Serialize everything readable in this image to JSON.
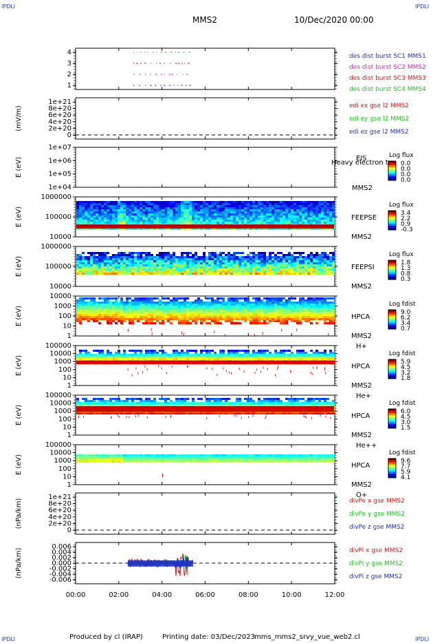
{
  "corner_label": "IPDLI",
  "header": {
    "title": "MMS2",
    "datetime": "10/Dec/2020 00:00"
  },
  "footer": {
    "produced": "Produced by cl (IRAP)",
    "printing": "Printing date: 03/Dec/2023",
    "file": "mms_mms2_srvy_vue_web2.cl"
  },
  "colors": {
    "red": "#e01010",
    "green": "#1fbf1f",
    "blue": "#1a2ec8",
    "magenta": "#d020d0",
    "black": "#000000"
  },
  "chart_data": {
    "type": "multi-panel time series / spectrogram",
    "x_range": [
      "00:00",
      "12:00"
    ],
    "x_ticks": [
      "00:00",
      "02:00",
      "04:00",
      "06:00",
      "08:00",
      "10:00",
      "12:00"
    ],
    "panels": [
      {
        "id": "dist",
        "type": "line",
        "y_ticks": [
          "1",
          "2",
          "3",
          "4"
        ],
        "legend": [
          {
            "label": "des dist burst SC1 MMS1",
            "color": "#1a2ec8"
          },
          {
            "label": "des dist burst SC2 MMS2",
            "color": "#d020d0"
          },
          {
            "label": "des dist burst SC3 MMS3",
            "color": "#e01010"
          },
          {
            "label": "des dist burst SC4 MMS4",
            "color": "#1fbf1f"
          }
        ]
      },
      {
        "id": "edi",
        "type": "line",
        "ylabel": "(mV/m)",
        "y_ticks": [
          "0",
          "2e+20",
          "4e+20",
          "6e+20",
          "8e+20",
          "1e+21"
        ],
        "legend": [
          {
            "label": "edi ex gse l2 MMS2",
            "color": "#e01010"
          },
          {
            "label": "edi ey gse l2 MMS2",
            "color": "#1fbf1f"
          },
          {
            "label": "edi ez gse l2 MMS2",
            "color": "#1a2ec8"
          }
        ]
      },
      {
        "id": "eis",
        "type": "heatmap",
        "ylabel": "E (eV)",
        "y_ticks": [
          "1e+04",
          "1e+05",
          "1e+06",
          "1e+07"
        ],
        "labels": [
          "EIS",
          "Heavy electron to",
          "MMS2"
        ],
        "cbar_title": "Log flux",
        "cbar_ticks": [
          "0.0",
          "0.0",
          "0.0",
          "0.0"
        ]
      },
      {
        "id": "feepse",
        "type": "heatmap",
        "ylabel": "E (eV)",
        "y_ticks": [
          "10000",
          "100000",
          "1000000"
        ],
        "labels": [
          "FEEPSE",
          "MMS2"
        ],
        "cbar_title": "Log flux",
        "cbar_ticks": [
          "3.4",
          "2.2",
          "0.9",
          "-0.3"
        ]
      },
      {
        "id": "feepsi",
        "type": "heatmap",
        "ylabel": "E (eV)",
        "y_ticks": [
          "10000",
          "100000",
          "1000000"
        ],
        "labels": [
          "FEEPSI",
          "MMS2"
        ],
        "cbar_title": "Log flux",
        "cbar_ticks": [
          "1.8",
          "1.3",
          "0.8",
          "0.3"
        ]
      },
      {
        "id": "hpca_h",
        "type": "heatmap",
        "ylabel": "E (eV)",
        "y_ticks": [
          "1",
          "10",
          "100",
          "1000",
          "10000"
        ],
        "labels": [
          "HPCA",
          "MMS2",
          "H+"
        ],
        "cbar_title": "Log fdist",
        "cbar_ticks": [
          "9.0",
          "6.2",
          "3.4",
          "0.7"
        ]
      },
      {
        "id": "hpca_he",
        "type": "heatmap",
        "ylabel": "E (eV)",
        "y_ticks": [
          "1",
          "10",
          "100",
          "1000",
          "10000",
          "100000"
        ],
        "labels": [
          "HPCA",
          "MMS2",
          "He+"
        ],
        "cbar_title": "Log fdist",
        "cbar_ticks": [
          "5.9",
          "4.5",
          "3.2",
          "1.8"
        ]
      },
      {
        "id": "hpca_hepp",
        "type": "heatmap",
        "ylabel": "E (eV)",
        "y_ticks": [
          "1",
          "10",
          "100",
          "1000",
          "10000",
          "100000"
        ],
        "labels": [
          "HPCA",
          "MMS2",
          "He++"
        ],
        "cbar_title": "Log fdist",
        "cbar_ticks": [
          "6.0",
          "4.5",
          "3.0",
          "1.5"
        ]
      },
      {
        "id": "hpca_o",
        "type": "heatmap",
        "ylabel": "E (eV)",
        "y_ticks": [
          "1",
          "10",
          "100",
          "1000",
          "10000",
          "100000"
        ],
        "labels": [
          "HPCA",
          "MMS2",
          "O+"
        ],
        "cbar_title": "Log fdist",
        "cbar_ticks": [
          "9.6",
          "7.7",
          "5.9",
          "4.1"
        ]
      },
      {
        "id": "divpe",
        "type": "line",
        "ylabel": "(nPa/km)",
        "y_ticks": [
          "0",
          "2e+20",
          "4e+20",
          "6e+20",
          "8e+20",
          "1e+21"
        ],
        "legend": [
          {
            "label": "divPe x gse MMS2",
            "color": "#e01010"
          },
          {
            "label": "divPe y gse MMS2",
            "color": "#1fbf1f"
          },
          {
            "label": "divPe z gse MMS2",
            "color": "#1a2ec8"
          }
        ]
      },
      {
        "id": "divpi",
        "type": "line",
        "ylabel": "(nPa/km)",
        "y_ticks": [
          "-0.006",
          "-0.004",
          "-0.002",
          "0.000",
          "0.002",
          "0.004",
          "0.006"
        ],
        "legend": [
          {
            "label": "divPi x gse MMS2",
            "color": "#e01010"
          },
          {
            "label": "divPi y gse MMS2",
            "color": "#1fbf1f"
          },
          {
            "label": "divPi z gse MMS2",
            "color": "#1a2ec8"
          }
        ]
      }
    ]
  }
}
